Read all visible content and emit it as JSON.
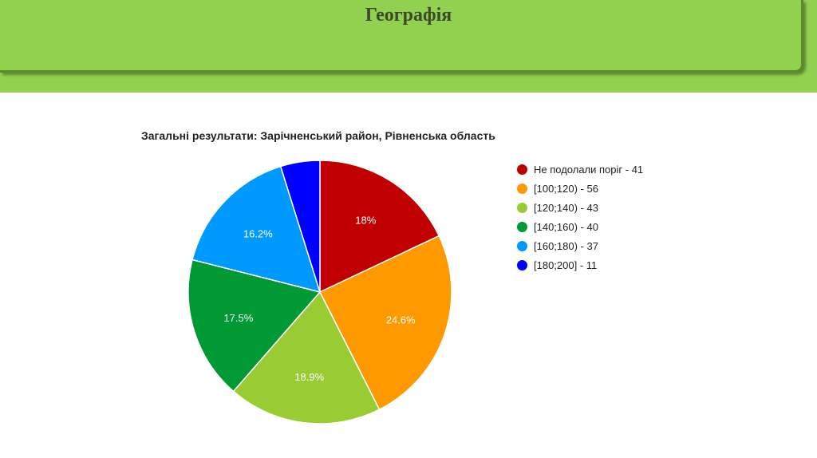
{
  "slide": {
    "title": "Географія"
  },
  "chart_data": {
    "type": "pie",
    "title": "Загальні результати: Зарічненський район, Рівненська область",
    "legend_position": "right",
    "slices": [
      {
        "label": "Не подолали поріг - 41",
        "value": 41,
        "percent_label": "18%",
        "color": "#c00000"
      },
      {
        "label": "[100;120) - 56",
        "value": 56,
        "percent_label": "24.6%",
        "color": "#ff9900"
      },
      {
        "label": "[120;140) - 43",
        "value": 43,
        "percent_label": "18.9%",
        "color": "#99cc33"
      },
      {
        "label": "[140;160) - 40",
        "value": 40,
        "percent_label": "17.5%",
        "color": "#009933"
      },
      {
        "label": "[160;180) - 37",
        "value": 37,
        "percent_label": "16.2%",
        "color": "#0099ff"
      },
      {
        "label": "[180;200] - 11",
        "value": 11,
        "percent_label": "",
        "color": "#0000ff"
      }
    ]
  }
}
